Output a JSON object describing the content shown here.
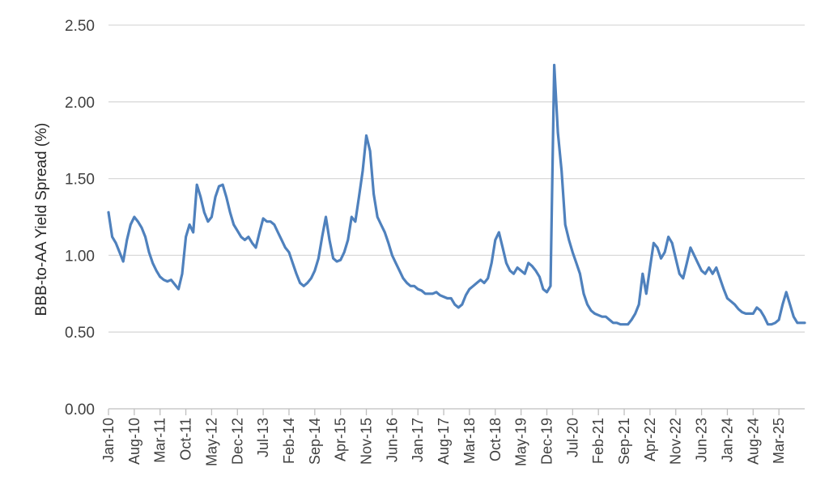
{
  "chart_data": {
    "type": "line",
    "title": "",
    "xlabel": "",
    "ylabel": "BBB-to-AA Yield Spread (%)",
    "ylim": [
      0,
      2.5
    ],
    "yticks": [
      "0.00",
      "0.50",
      "1.00",
      "1.50",
      "2.00",
      "2.50"
    ],
    "xticks": [
      "Jan-10",
      "Aug-10",
      "Mar-11",
      "Oct-11",
      "May-12",
      "Dec-12",
      "Jul-13",
      "Feb-14",
      "Sep-14",
      "Apr-15",
      "Nov-15",
      "Jun-16",
      "Jan-17",
      "Aug-17",
      "Mar-18",
      "Oct-18",
      "May-19",
      "Dec-19",
      "Jul-20",
      "Feb-21",
      "Sep-21",
      "Apr-22",
      "Nov-22",
      "Jun-23",
      "Jan-24",
      "Aug-24",
      "Mar-25"
    ],
    "grid": true,
    "legend": "none",
    "color": "#4f81bd",
    "x_start": "2010-01",
    "x_end": "2025-10",
    "series": [
      {
        "x": [
          "2010-01",
          "2010-02",
          "2010-03",
          "2010-04",
          "2010-05",
          "2010-06",
          "2010-07",
          "2010-08",
          "2010-09",
          "2010-10",
          "2010-11",
          "2010-12",
          "2011-01",
          "2011-02",
          "2011-03",
          "2011-04",
          "2011-05",
          "2011-06",
          "2011-07",
          "2011-08",
          "2011-09",
          "2011-10",
          "2011-11",
          "2011-12",
          "2012-01",
          "2012-02",
          "2012-03",
          "2012-04",
          "2012-05",
          "2012-06",
          "2012-07",
          "2012-08",
          "2012-09",
          "2012-10",
          "2012-11",
          "2012-12",
          "2013-01",
          "2013-02",
          "2013-03",
          "2013-04",
          "2013-05",
          "2013-06",
          "2013-07",
          "2013-08",
          "2013-09",
          "2013-10",
          "2013-11",
          "2013-12",
          "2014-01",
          "2014-02",
          "2014-03",
          "2014-04",
          "2014-05",
          "2014-06",
          "2014-07",
          "2014-08",
          "2014-09",
          "2014-10",
          "2014-11",
          "2014-12",
          "2015-01",
          "2015-02",
          "2015-03",
          "2015-04",
          "2015-05",
          "2015-06",
          "2015-07",
          "2015-08",
          "2015-09",
          "2015-10",
          "2015-11",
          "2015-12",
          "2016-01",
          "2016-02",
          "2016-03",
          "2016-04",
          "2016-05",
          "2016-06",
          "2016-07",
          "2016-08",
          "2016-09",
          "2016-10",
          "2016-11",
          "2016-12",
          "2017-01",
          "2017-02",
          "2017-03",
          "2017-04",
          "2017-05",
          "2017-06",
          "2017-07",
          "2017-08",
          "2017-09",
          "2017-10",
          "2017-11",
          "2017-12",
          "2018-01",
          "2018-02",
          "2018-03",
          "2018-04",
          "2018-05",
          "2018-06",
          "2018-07",
          "2018-08",
          "2018-09",
          "2018-10",
          "2018-11",
          "2018-12",
          "2019-01",
          "2019-02",
          "2019-03",
          "2019-04",
          "2019-05",
          "2019-06",
          "2019-07",
          "2019-08",
          "2019-09",
          "2019-10",
          "2019-11",
          "2019-12",
          "2020-01",
          "2020-02",
          "2020-03",
          "2020-04",
          "2020-05",
          "2020-06",
          "2020-07",
          "2020-08",
          "2020-09",
          "2020-10",
          "2020-11",
          "2020-12",
          "2021-01",
          "2021-02",
          "2021-03",
          "2021-04",
          "2021-05",
          "2021-06",
          "2021-07",
          "2021-08",
          "2021-09",
          "2021-10",
          "2021-11",
          "2021-12",
          "2022-01",
          "2022-02",
          "2022-03",
          "2022-04",
          "2022-05",
          "2022-06",
          "2022-07",
          "2022-08",
          "2022-09",
          "2022-10",
          "2022-11",
          "2022-12",
          "2023-01",
          "2023-02",
          "2023-03",
          "2023-04",
          "2023-05",
          "2023-06",
          "2023-07",
          "2023-08",
          "2023-09",
          "2023-10",
          "2023-11",
          "2023-12",
          "2024-01",
          "2024-02",
          "2024-03",
          "2024-04",
          "2024-05",
          "2024-06",
          "2024-07",
          "2024-08",
          "2024-09",
          "2024-10",
          "2024-11",
          "2024-12",
          "2025-01",
          "2025-02",
          "2025-03",
          "2025-04",
          "2025-05",
          "2025-06",
          "2025-07",
          "2025-08",
          "2025-09",
          "2025-10"
        ],
        "values": [
          1.28,
          1.12,
          1.08,
          1.02,
          0.96,
          1.1,
          1.2,
          1.25,
          1.22,
          1.18,
          1.12,
          1.02,
          0.95,
          0.9,
          0.86,
          0.84,
          0.83,
          0.84,
          0.81,
          0.78,
          0.88,
          1.12,
          1.2,
          1.15,
          1.46,
          1.38,
          1.28,
          1.22,
          1.25,
          1.38,
          1.45,
          1.46,
          1.38,
          1.28,
          1.2,
          1.16,
          1.12,
          1.1,
          1.12,
          1.08,
          1.05,
          1.15,
          1.24,
          1.22,
          1.22,
          1.2,
          1.15,
          1.1,
          1.05,
          1.02,
          0.95,
          0.88,
          0.82,
          0.8,
          0.82,
          0.85,
          0.9,
          0.98,
          1.12,
          1.25,
          1.1,
          0.98,
          0.96,
          0.97,
          1.02,
          1.1,
          1.25,
          1.22,
          1.38,
          1.55,
          1.78,
          1.68,
          1.4,
          1.25,
          1.2,
          1.15,
          1.08,
          1.0,
          0.95,
          0.9,
          0.85,
          0.82,
          0.8,
          0.8,
          0.78,
          0.77,
          0.75,
          0.75,
          0.75,
          0.76,
          0.74,
          0.73,
          0.72,
          0.72,
          0.68,
          0.66,
          0.68,
          0.74,
          0.78,
          0.8,
          0.82,
          0.84,
          0.82,
          0.85,
          0.95,
          1.1,
          1.15,
          1.05,
          0.95,
          0.9,
          0.88,
          0.92,
          0.9,
          0.88,
          0.95,
          0.93,
          0.9,
          0.86,
          0.78,
          0.76,
          0.8,
          2.24,
          1.8,
          1.55,
          1.2,
          1.1,
          1.02,
          0.95,
          0.88,
          0.75,
          0.68,
          0.64,
          0.62,
          0.61,
          0.6,
          0.6,
          0.58,
          0.56,
          0.56,
          0.55,
          0.55,
          0.55,
          0.58,
          0.62,
          0.68,
          0.88,
          0.75,
          0.92,
          1.08,
          1.05,
          0.98,
          1.02,
          1.12,
          1.08,
          0.98,
          0.88,
          0.85,
          0.95,
          1.05,
          1.0,
          0.95,
          0.9,
          0.88,
          0.92,
          0.88,
          0.92,
          0.85,
          0.78,
          0.72,
          0.7,
          0.68,
          0.65,
          0.63,
          0.62,
          0.62,
          0.62,
          0.66,
          0.64,
          0.6,
          0.55,
          0.55,
          0.56,
          0.58,
          0.68,
          0.76,
          0.68,
          0.6,
          0.56,
          0.56,
          0.56
        ]
      }
    ]
  }
}
